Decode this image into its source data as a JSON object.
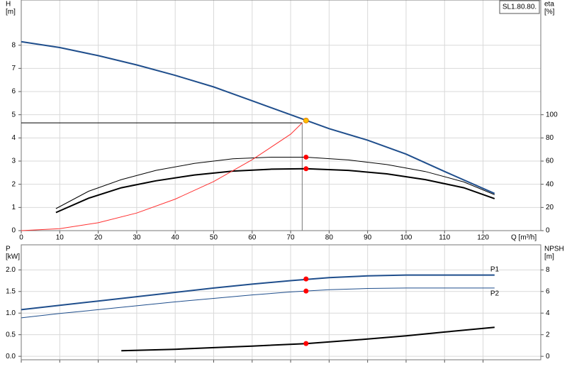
{
  "chart_data": [
    {
      "type": "line",
      "model": "SL1.80.80.",
      "ylabel": [
        "H",
        "[m]"
      ],
      "y2label": [
        "eta",
        "[%]"
      ],
      "xlabel": "Q [m³/h]",
      "xlim": [
        0,
        135
      ],
      "xticks": [
        0,
        10,
        20,
        30,
        40,
        50,
        60,
        70,
        80,
        90,
        100,
        110,
        120
      ],
      "ylim": [
        0,
        9.95
      ],
      "yticks": [
        0,
        1,
        2,
        3,
        4,
        5,
        6,
        7,
        8
      ],
      "y2lim": [
        0,
        199
      ],
      "y2ticks": [
        0,
        20,
        40,
        60,
        80,
        100
      ],
      "grid": true,
      "xtick_labels": true,
      "duty_point": {
        "q": 73,
        "h": 4.65
      },
      "series": [
        {
          "color": "#1f4e8c",
          "width": 2,
          "x": [
            0,
            10,
            20,
            30,
            40,
            50,
            60,
            70,
            80,
            90,
            100,
            110,
            123
          ],
          "values": [
            8.15,
            7.9,
            7.55,
            7.15,
            6.7,
            6.2,
            5.6,
            5.0,
            4.4,
            3.9,
            3.3,
            2.55,
            1.6
          ]
        },
        {
          "color": "#000000",
          "width": 1,
          "axis": "y2",
          "x": [
            9,
            17.5,
            26,
            35,
            45,
            55,
            65,
            74,
            85,
            95,
            105,
            115,
            123
          ],
          "values": [
            19,
            34,
            44,
            52,
            58,
            62,
            63.4,
            63.4,
            61,
            57,
            51,
            42,
            31
          ]
        },
        {
          "color": "#000000",
          "width": 2,
          "axis": "y2",
          "x": [
            9,
            17.5,
            26,
            35,
            45,
            55,
            65,
            74,
            85,
            95,
            105,
            115,
            123
          ],
          "values": [
            15.6,
            28,
            37,
            43,
            48,
            51.4,
            53,
            53.4,
            52,
            49,
            44,
            37,
            27.6
          ]
        },
        {
          "color": "#ff3030",
          "width": 1,
          "x": [
            0,
            10,
            20,
            30,
            40,
            50,
            60,
            70,
            73
          ],
          "values": [
            0,
            0.085,
            0.34,
            0.76,
            1.36,
            2.12,
            3.06,
            4.16,
            4.65
          ]
        },
        {
          "color": "#ff0000",
          "marker": true,
          "axis": "y2",
          "x": [
            74,
            74
          ],
          "values": [
            63.4,
            53.4
          ]
        },
        {
          "color": "#ffc000",
          "marker": true,
          "x": [
            74
          ],
          "values": [
            4.75
          ]
        }
      ]
    },
    {
      "type": "line",
      "ylabel": [
        "P",
        "[kW]"
      ],
      "y2label": [
        "NPSH",
        "[m]"
      ],
      "xlim": [
        0,
        135
      ],
      "xticks": [
        0,
        10,
        20,
        30,
        40,
        50,
        60,
        70,
        80,
        90,
        100,
        110,
        120
      ],
      "ylim": [
        -0.08,
        2.58
      ],
      "yticks": [
        {
          "value": 0,
          "label": "0.0"
        },
        {
          "value": 0.5,
          "label": "0.5"
        },
        {
          "value": 1,
          "label": "1.0"
        },
        {
          "value": 1.5,
          "label": "1.5"
        },
        {
          "value": 2,
          "label": "2.0"
        }
      ],
      "y2lim": [
        -0.32,
        10.32
      ],
      "y2ticks": [
        0,
        2,
        4,
        6,
        8
      ],
      "grid": true,
      "xtick_labels": false,
      "series": [
        {
          "name": "P1",
          "label_side": "above",
          "color": "#1f4e8c",
          "width": 2,
          "x": [
            0,
            10,
            20,
            30,
            40,
            50,
            60,
            70,
            80,
            90,
            100,
            110,
            123
          ],
          "values": [
            1.08,
            1.18,
            1.28,
            1.38,
            1.48,
            1.58,
            1.67,
            1.75,
            1.82,
            1.86,
            1.88,
            1.88,
            1.88
          ]
        },
        {
          "name": "P2",
          "label_side": "below",
          "color": "#1f4e8c",
          "width": 1,
          "x": [
            0,
            10,
            20,
            30,
            40,
            50,
            60,
            70,
            80,
            90,
            100,
            110,
            123
          ],
          "values": [
            0.89,
            0.99,
            1.08,
            1.17,
            1.26,
            1.34,
            1.42,
            1.49,
            1.54,
            1.57,
            1.58,
            1.58,
            1.58
          ]
        },
        {
          "color": "#000000",
          "width": 2,
          "axis": "y2",
          "x": [
            26,
            40,
            50,
            60,
            74,
            90,
            100,
            110,
            123
          ],
          "values": [
            0.52,
            0.65,
            0.8,
            0.95,
            1.18,
            1.6,
            1.9,
            2.25,
            2.68
          ]
        },
        {
          "color": "#ff0000",
          "marker": true,
          "x": [
            74,
            74
          ],
          "values": [
            1.79,
            1.51
          ]
        },
        {
          "color": "#ff0000",
          "marker": true,
          "axis": "y2",
          "x": [
            74
          ],
          "values": [
            1.18
          ]
        }
      ]
    }
  ]
}
